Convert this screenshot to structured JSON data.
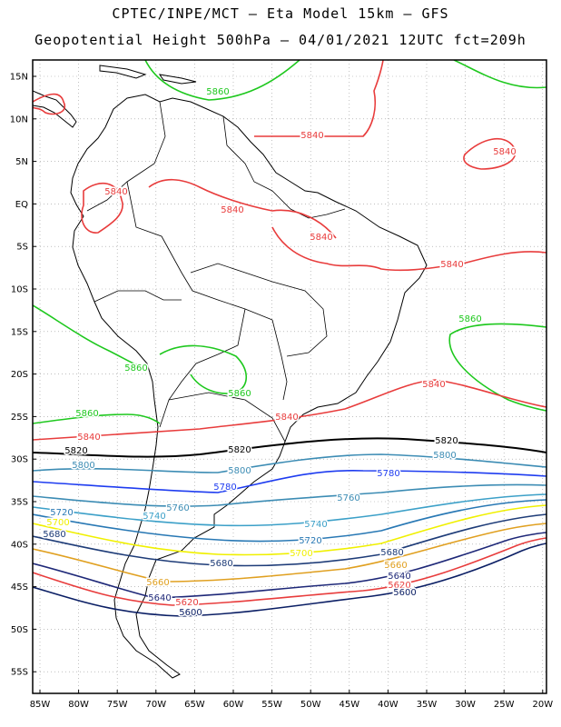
{
  "title_line1": "CPTEC/INPE/MCT –  Eta Model 15km – GFS",
  "title_line2": "Geopotential Height 500hPa – 04/01/2021 12UTC fct=209h",
  "colors": {
    "c5860": "#1ec81e",
    "c5840": "#e83c3c",
    "c5820": "#000000",
    "c5800": "#3c8cb4",
    "c5780": "#1e3cf0",
    "c5760": "#3c8cb4",
    "c5740": "#3ca0c8",
    "c5720": "#2878b4",
    "c5700": "#f0f000",
    "c5680": "#1e3c78",
    "c5660": "#e0a020",
    "c5640": "#1e2878",
    "c5620": "#e83c3c",
    "c5600": "#0a1e64",
    "land": "#000000",
    "grid": "#999999"
  },
  "lon_ticks": [
    "85W",
    "80W",
    "75W",
    "70W",
    "65W",
    "60W",
    "55W",
    "50W",
    "45W",
    "40W",
    "35W",
    "30W",
    "25W",
    "20W"
  ],
  "lat_ticks": [
    "15N",
    "10N",
    "5N",
    "EQ",
    "5S",
    "10S",
    "15S",
    "20S",
    "25S",
    "30S",
    "35S",
    "40S",
    "45S",
    "50S",
    "55S"
  ],
  "contour_labels": [
    {
      "text": "5860",
      "color": "c5860"
    },
    {
      "text": "5840",
      "color": "c5840"
    },
    {
      "text": "5840",
      "color": "c5840"
    },
    {
      "text": "5840",
      "color": "c5840"
    },
    {
      "text": "5840",
      "color": "c5840"
    },
    {
      "text": "5840",
      "color": "c5840"
    },
    {
      "text": "5840",
      "color": "c5840"
    },
    {
      "text": "5860",
      "color": "c5860"
    },
    {
      "text": "5860",
      "color": "c5860"
    },
    {
      "text": "5860",
      "color": "c5860"
    },
    {
      "text": "5840",
      "color": "c5840"
    },
    {
      "text": "5860",
      "color": "c5860"
    },
    {
      "text": "5840",
      "color": "c5840"
    },
    {
      "text": "5840",
      "color": "c5840"
    },
    {
      "text": "5820",
      "color": "c5820"
    },
    {
      "text": "5820",
      "color": "c5820"
    },
    {
      "text": "5820",
      "color": "c5820"
    },
    {
      "text": "5800",
      "color": "c5800"
    },
    {
      "text": "5800",
      "color": "c5800"
    },
    {
      "text": "5800",
      "color": "c5800"
    },
    {
      "text": "5780",
      "color": "c5780"
    },
    {
      "text": "5780",
      "color": "c5780"
    },
    {
      "text": "5760",
      "color": "c5760"
    },
    {
      "text": "5760",
      "color": "c5760"
    },
    {
      "text": "5740",
      "color": "c5740"
    },
    {
      "text": "5740",
      "color": "c5740"
    },
    {
      "text": "5720",
      "color": "c5720"
    },
    {
      "text": "5720",
      "color": "c5720"
    },
    {
      "text": "5700",
      "color": "c5700"
    },
    {
      "text": "5700",
      "color": "c5700"
    },
    {
      "text": "5680",
      "color": "c5680"
    },
    {
      "text": "5680",
      "color": "c5680"
    },
    {
      "text": "5680",
      "color": "c5680"
    },
    {
      "text": "5660",
      "color": "c5660"
    },
    {
      "text": "5660",
      "color": "c5660"
    },
    {
      "text": "5640",
      "color": "c5640"
    },
    {
      "text": "5640",
      "color": "c5640"
    },
    {
      "text": "5620",
      "color": "c5620"
    },
    {
      "text": "5620",
      "color": "c5620"
    },
    {
      "text": "5600",
      "color": "c5600"
    },
    {
      "text": "5600",
      "color": "c5600"
    }
  ]
}
